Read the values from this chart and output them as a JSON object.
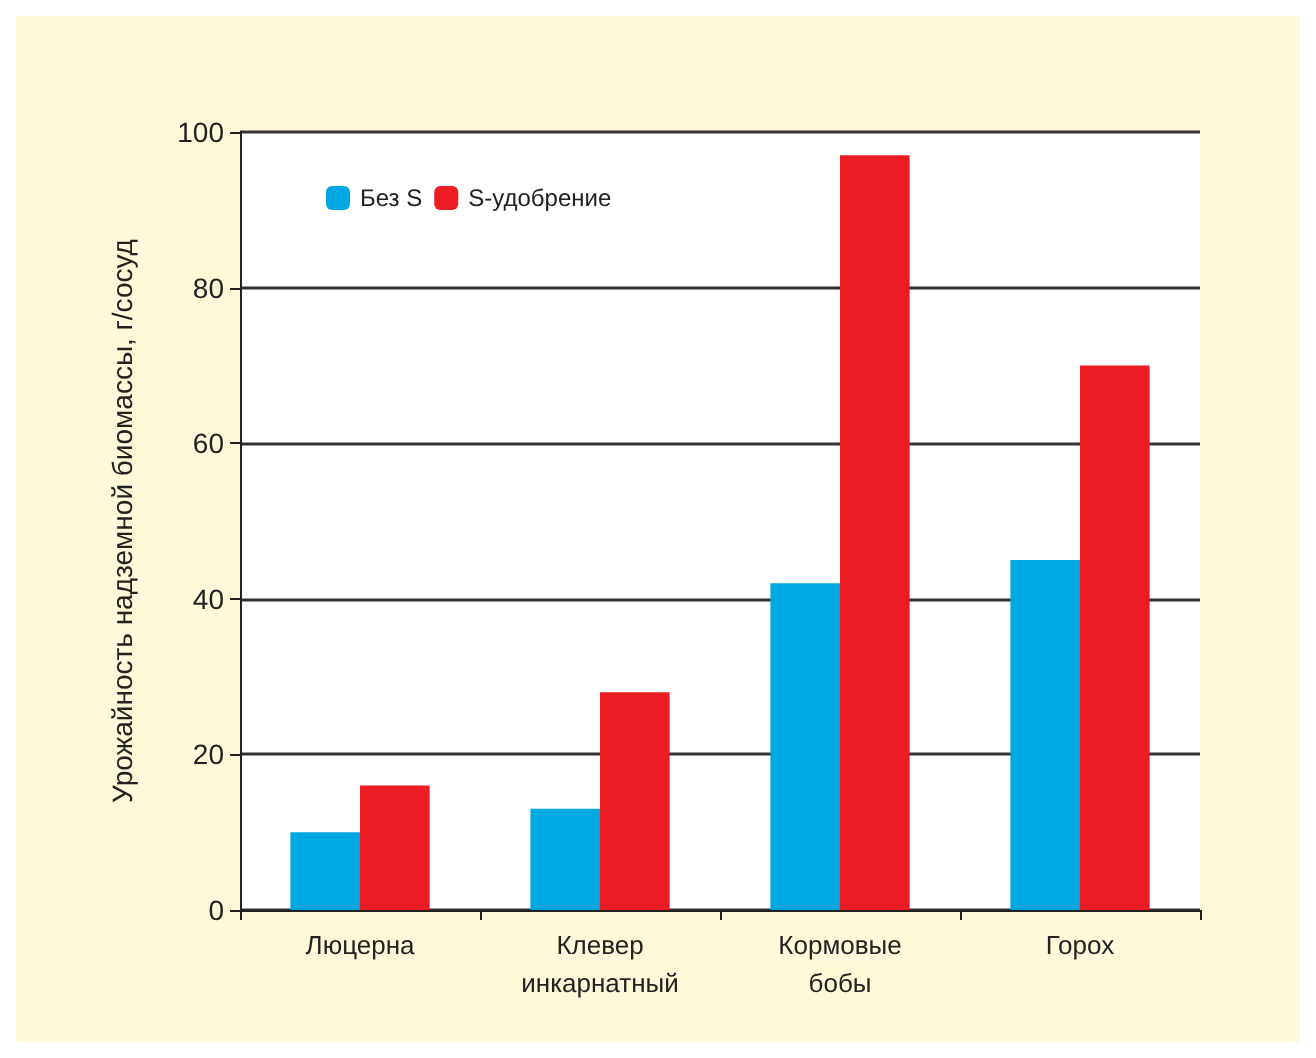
{
  "chart_data": {
    "type": "bar",
    "ylabel": "Урожайность надземной биомассы, г/сосуд",
    "categories": [
      "Люцерна",
      "Клевер\nинкарнатный",
      "Кормовые\nбобы",
      "Горох"
    ],
    "series": [
      {
        "name": "Без S",
        "color": "#00a8e1",
        "values": [
          10,
          13,
          42,
          45
        ]
      },
      {
        "name": "S-удобрение",
        "color": "#ec1c24",
        "values": [
          16,
          28,
          97,
          70
        ]
      }
    ],
    "ylim": [
      0,
      100
    ],
    "yticks": [
      0,
      20,
      40,
      60,
      80,
      100
    ],
    "grid": "y",
    "legend": "top left"
  }
}
